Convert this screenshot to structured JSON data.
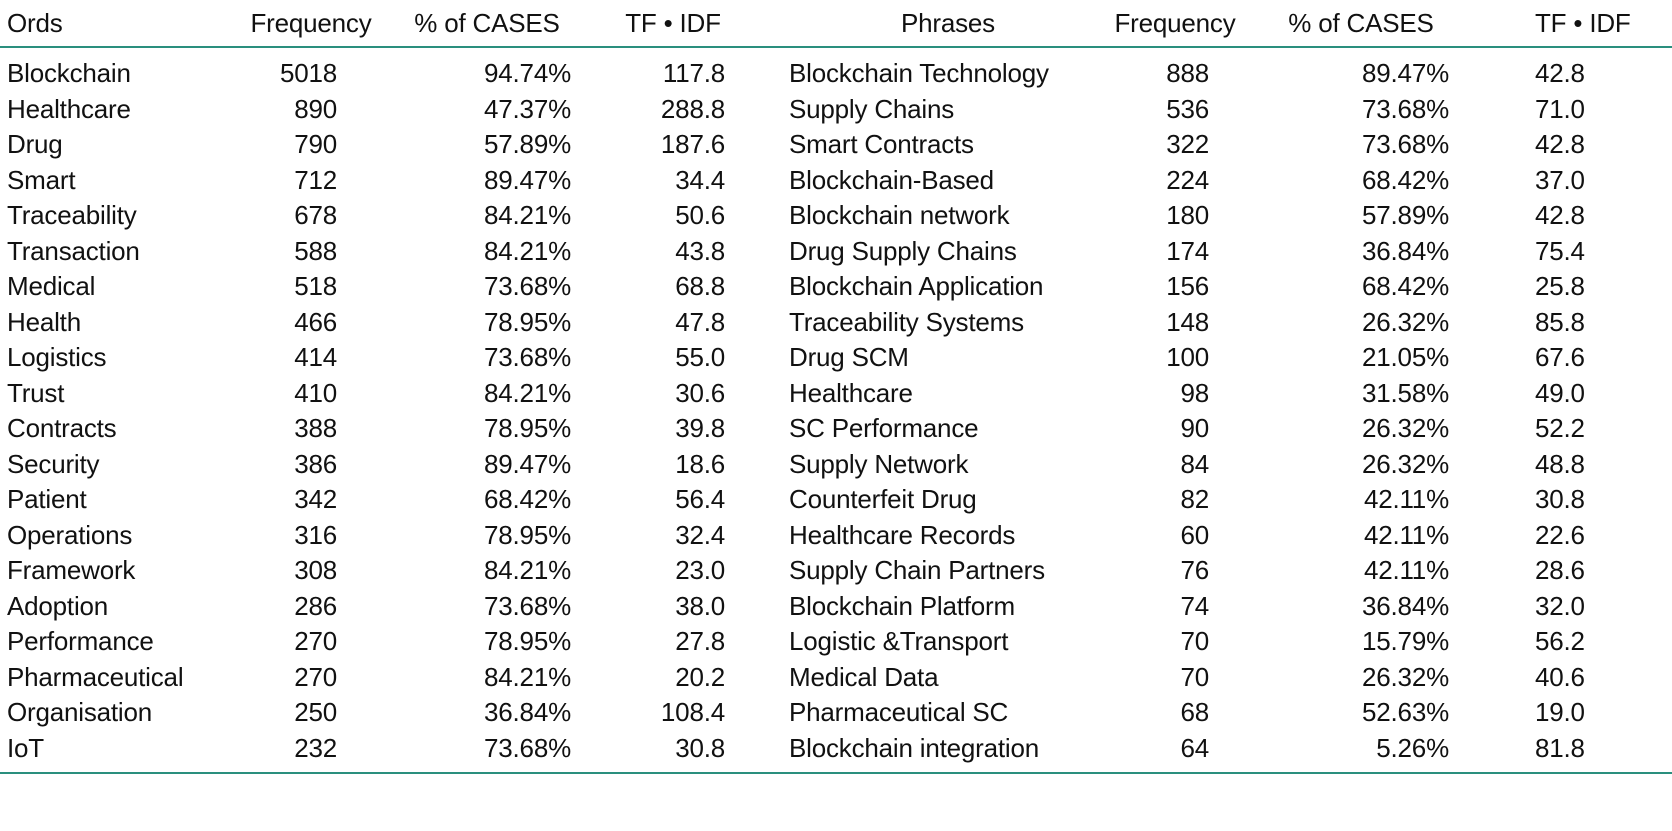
{
  "headers": {
    "words": "Ords",
    "frequency": "Frequency",
    "pct_cases": "% of CASES",
    "tfidf": "TF • IDF",
    "phrases": "Phrases",
    "frequency2": "Frequency",
    "pct_cases2": "% of CASES",
    "tfidf2": "TF • IDF"
  },
  "rows": [
    {
      "word": "Blockchain",
      "freq": "5018",
      "pct": "94.74%",
      "tfidf": "117.8",
      "phrase": "Blockchain Technology",
      "freq2": "888",
      "pct2": "89.47%",
      "tfidf2": "42.8"
    },
    {
      "word": "Healthcare",
      "freq": "890",
      "pct": "47.37%",
      "tfidf": "288.8",
      "phrase": "Supply Chains",
      "freq2": "536",
      "pct2": "73.68%",
      "tfidf2": "71.0"
    },
    {
      "word": "Drug",
      "freq": "790",
      "pct": "57.89%",
      "tfidf": "187.6",
      "phrase": "Smart Contracts",
      "freq2": "322",
      "pct2": "73.68%",
      "tfidf2": "42.8"
    },
    {
      "word": "Smart",
      "freq": "712",
      "pct": "89.47%",
      "tfidf": "34.4",
      "phrase": "Blockchain-Based",
      "freq2": "224",
      "pct2": "68.42%",
      "tfidf2": "37.0"
    },
    {
      "word": "Traceability",
      "freq": "678",
      "pct": "84.21%",
      "tfidf": "50.6",
      "phrase": "Blockchain network",
      "freq2": "180",
      "pct2": "57.89%",
      "tfidf2": "42.8"
    },
    {
      "word": "Transaction",
      "freq": "588",
      "pct": "84.21%",
      "tfidf": "43.8",
      "phrase": "Drug Supply Chains",
      "freq2": "174",
      "pct2": "36.84%",
      "tfidf2": "75.4"
    },
    {
      "word": "Medical",
      "freq": "518",
      "pct": "73.68%",
      "tfidf": "68.8",
      "phrase": "Blockchain Application",
      "freq2": "156",
      "pct2": "68.42%",
      "tfidf2": "25.8"
    },
    {
      "word": "Health",
      "freq": "466",
      "pct": "78.95%",
      "tfidf": "47.8",
      "phrase": "Traceability Systems",
      "freq2": "148",
      "pct2": "26.32%",
      "tfidf2": "85.8"
    },
    {
      "word": "Logistics",
      "freq": "414",
      "pct": "73.68%",
      "tfidf": "55.0",
      "phrase": "Drug SCM",
      "freq2": "100",
      "pct2": "21.05%",
      "tfidf2": "67.6"
    },
    {
      "word": "Trust",
      "freq": "410",
      "pct": "84.21%",
      "tfidf": "30.6",
      "phrase": "Healthcare",
      "freq2": "98",
      "pct2": "31.58%",
      "tfidf2": "49.0"
    },
    {
      "word": "Contracts",
      "freq": "388",
      "pct": "78.95%",
      "tfidf": "39.8",
      "phrase": "SC Performance",
      "freq2": "90",
      "pct2": "26.32%",
      "tfidf2": "52.2"
    },
    {
      "word": "Security",
      "freq": "386",
      "pct": "89.47%",
      "tfidf": "18.6",
      "phrase": "Supply Network",
      "freq2": "84",
      "pct2": "26.32%",
      "tfidf2": "48.8"
    },
    {
      "word": "Patient",
      "freq": "342",
      "pct": "68.42%",
      "tfidf": "56.4",
      "phrase": "Counterfeit Drug",
      "freq2": "82",
      "pct2": "42.11%",
      "tfidf2": "30.8"
    },
    {
      "word": "Operations",
      "freq": "316",
      "pct": "78.95%",
      "tfidf": "32.4",
      "phrase": "Healthcare Records",
      "freq2": "60",
      "pct2": "42.11%",
      "tfidf2": "22.6"
    },
    {
      "word": "Framework",
      "freq": "308",
      "pct": "84.21%",
      "tfidf": "23.0",
      "phrase": "Supply Chain Partners",
      "freq2": "76",
      "pct2": "42.11%",
      "tfidf2": "28.6"
    },
    {
      "word": "Adoption",
      "freq": "286",
      "pct": "73.68%",
      "tfidf": "38.0",
      "phrase": "Blockchain Platform",
      "freq2": "74",
      "pct2": "36.84%",
      "tfidf2": "32.0"
    },
    {
      "word": "Performance",
      "freq": "270",
      "pct": "78.95%",
      "tfidf": "27.8",
      "phrase": "Logistic &Transport",
      "freq2": "70",
      "pct2": "15.79%",
      "tfidf2": "56.2"
    },
    {
      "word": "Pharmaceutical",
      "freq": "270",
      "pct": "84.21%",
      "tfidf": "20.2",
      "phrase": "Medical Data",
      "freq2": "70",
      "pct2": "26.32%",
      "tfidf2": "40.6"
    },
    {
      "word": "Organisation",
      "freq": "250",
      "pct": "36.84%",
      "tfidf": "108.4",
      "phrase": "Pharmaceutical SC",
      "freq2": "68",
      "pct2": "52.63%",
      "tfidf2": "19.0"
    },
    {
      "word": "IoT",
      "freq": "232",
      "pct": "73.68%",
      "tfidf": "30.8",
      "phrase": "Blockchain integration",
      "freq2": "64",
      "pct2": "5.26%",
      "tfidf2": "81.8"
    }
  ]
}
